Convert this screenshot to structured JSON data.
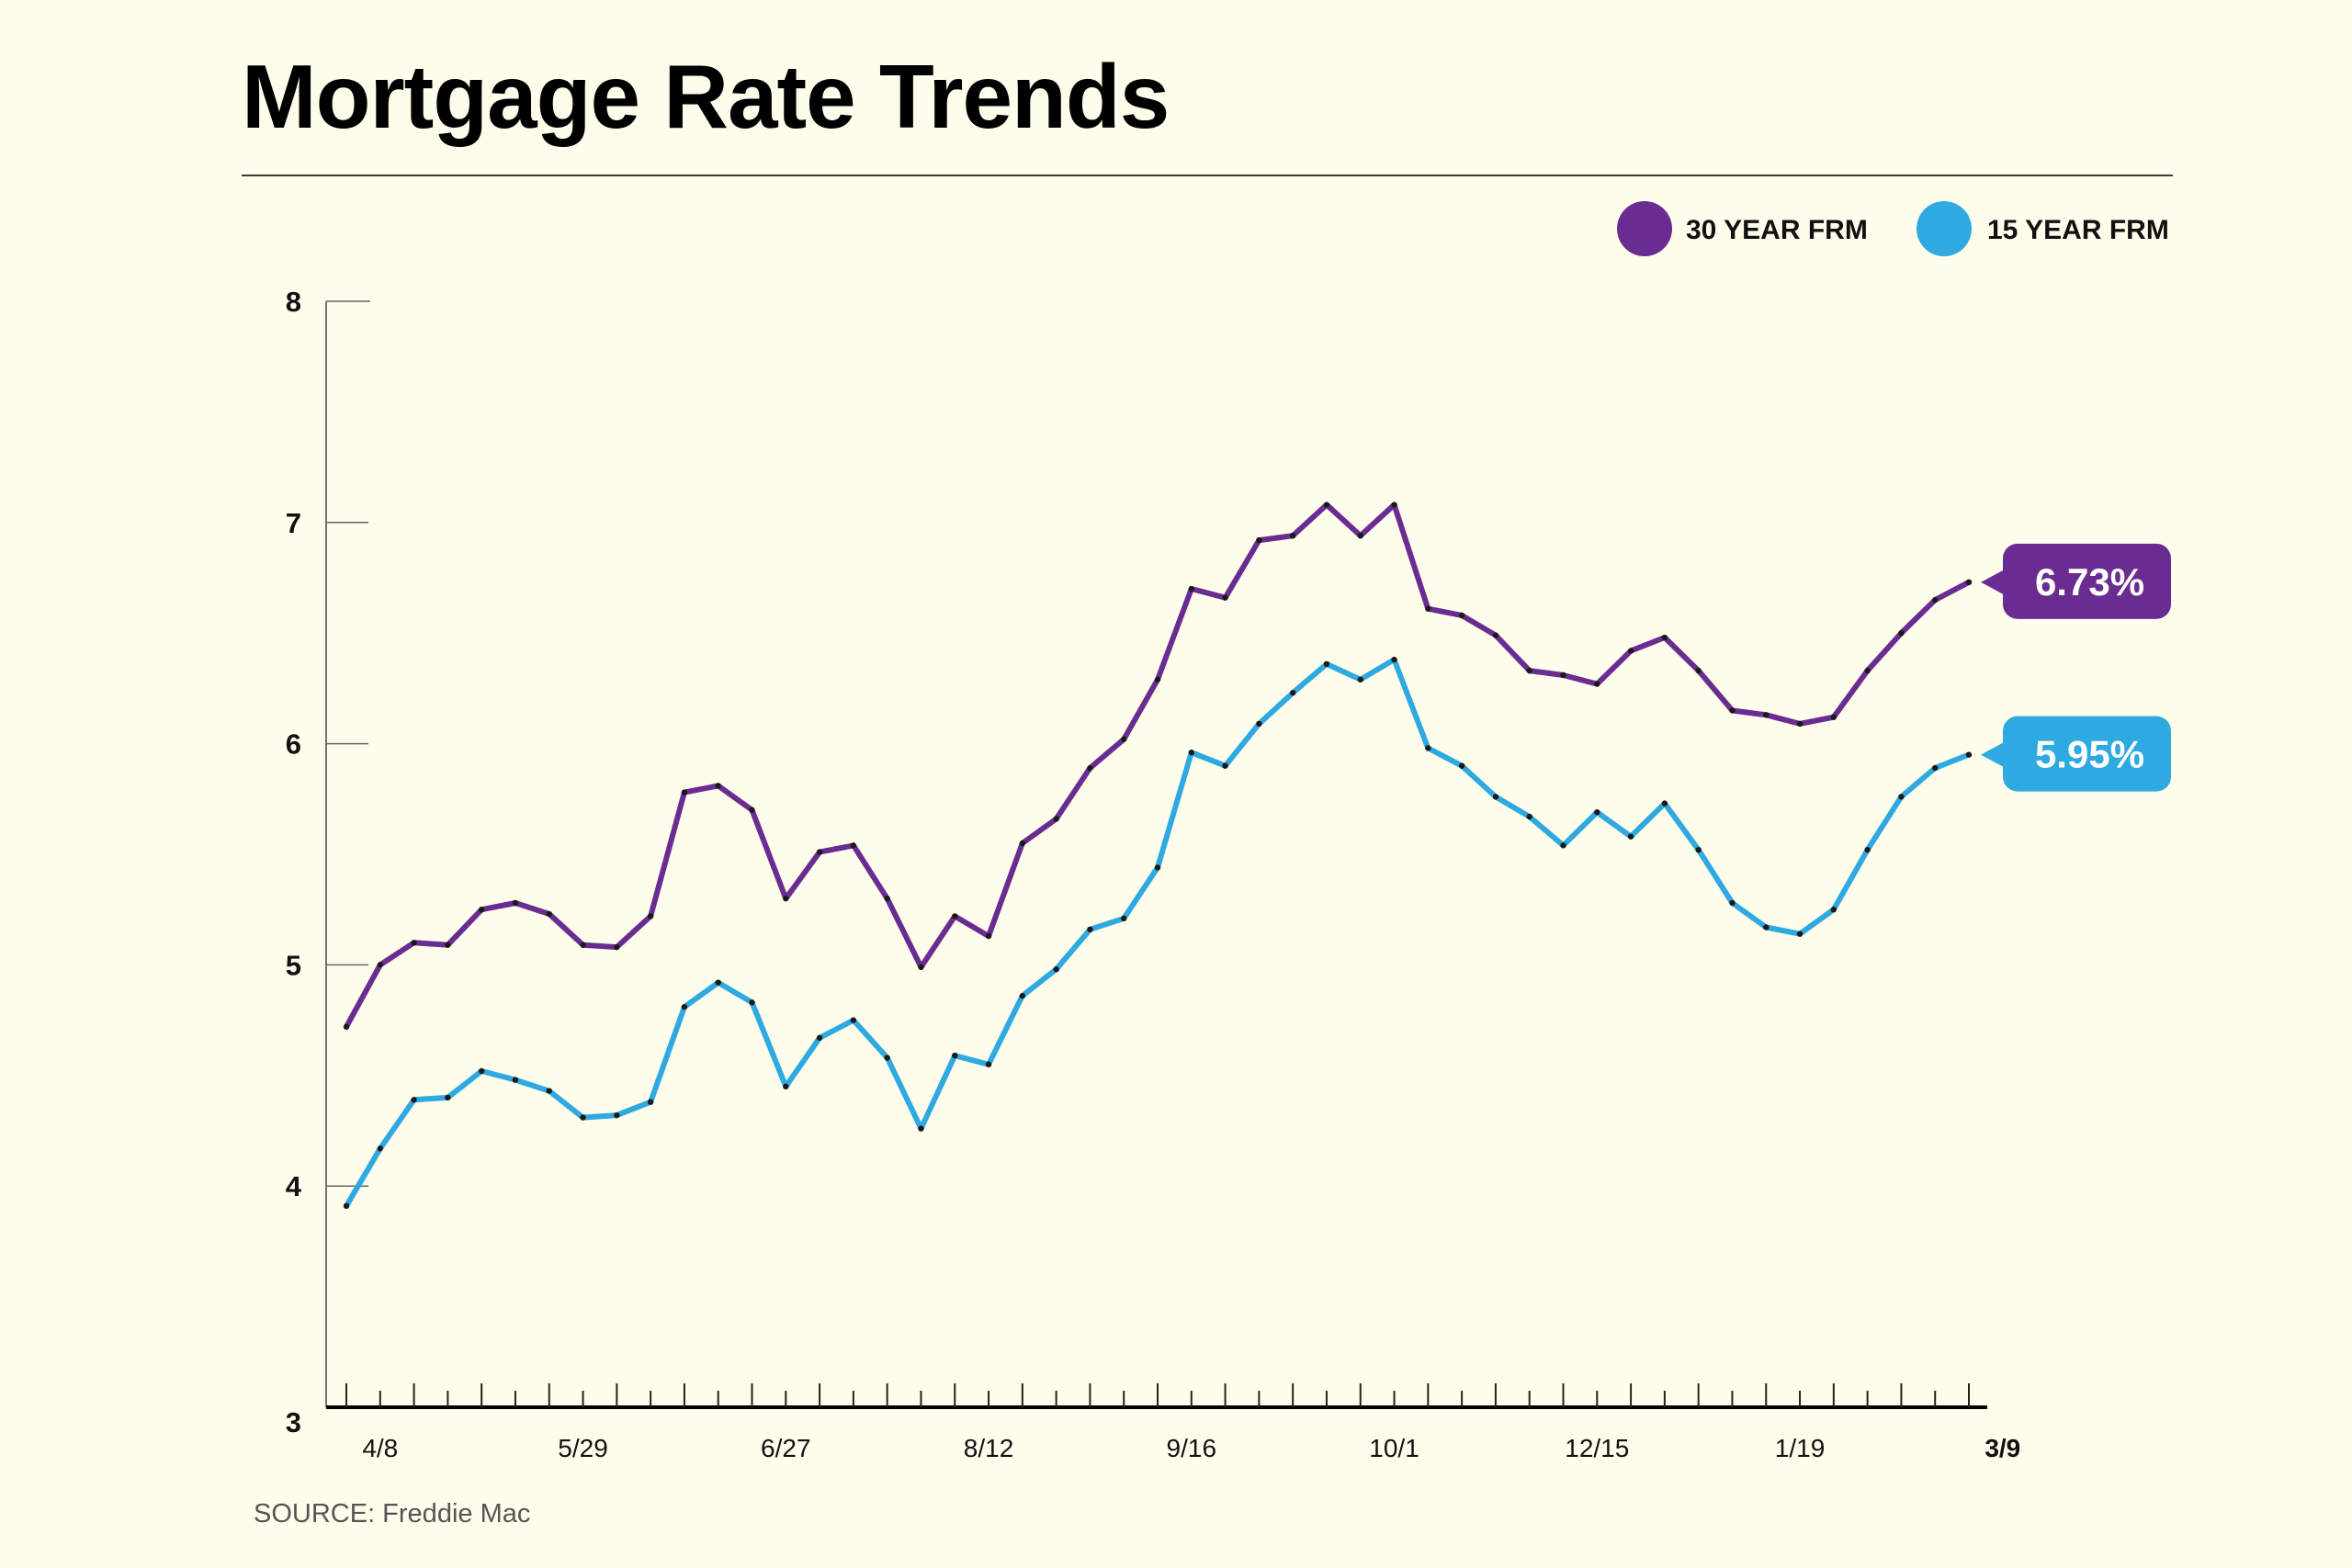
{
  "title": "Mortgage Rate Trends",
  "source": "SOURCE: Freddie Mac",
  "colors": {
    "series_30": "#6A2C91",
    "series_15": "#2EA9E1",
    "background": "#FEFDEB"
  },
  "chart_data": {
    "type": "line",
    "title": "Mortgage Rate Trends",
    "xlabel": "",
    "ylabel": "",
    "ylim": [
      3,
      8
    ],
    "yticks": [
      3,
      4,
      5,
      6,
      7,
      8
    ],
    "grid": false,
    "legend_position": "top-right",
    "xtick_labels": [
      {
        "label": "4/8",
        "index": 1,
        "bold": false
      },
      {
        "label": "5/29",
        "index": 7,
        "bold": false
      },
      {
        "label": "6/27",
        "index": 13,
        "bold": false
      },
      {
        "label": "8/12",
        "index": 19,
        "bold": false
      },
      {
        "label": "9/16",
        "index": 25,
        "bold": false
      },
      {
        "label": "10/1",
        "index": 31,
        "bold": false
      },
      {
        "label": "12/15",
        "index": 37,
        "bold": false
      },
      {
        "label": "1/19",
        "index": 43,
        "bold": false
      },
      {
        "label": "3/9",
        "index": 49,
        "bold": true
      }
    ],
    "series": [
      {
        "name": "30 YEAR FRM",
        "end_label": "6.73%",
        "values": [
          4.72,
          5.0,
          5.1,
          5.09,
          5.25,
          5.28,
          5.23,
          5.09,
          5.08,
          5.22,
          5.78,
          5.81,
          5.7,
          5.3,
          5.51,
          5.54,
          5.3,
          4.99,
          5.22,
          5.13,
          5.55,
          5.66,
          5.89,
          6.02,
          6.29,
          6.7,
          6.66,
          6.92,
          6.94,
          7.08,
          6.94,
          7.08,
          6.61,
          6.58,
          6.49,
          6.33,
          6.31,
          6.27,
          6.42,
          6.48,
          6.33,
          6.15,
          6.13,
          6.09,
          6.12,
          6.33,
          6.5,
          6.65,
          6.73
        ]
      },
      {
        "name": "15 YEAR FRM",
        "end_label": "5.95%",
        "values": [
          3.91,
          4.17,
          4.39,
          4.4,
          4.52,
          4.48,
          4.43,
          4.31,
          4.32,
          4.38,
          4.81,
          4.92,
          4.83,
          4.45,
          4.67,
          4.75,
          4.58,
          4.26,
          4.59,
          4.55,
          4.86,
          4.98,
          5.16,
          5.21,
          5.44,
          5.96,
          5.9,
          6.09,
          6.23,
          6.36,
          6.29,
          6.38,
          5.98,
          5.9,
          5.76,
          5.67,
          5.54,
          5.69,
          5.58,
          5.73,
          5.52,
          5.28,
          5.17,
          5.14,
          5.25,
          5.52,
          5.76,
          5.89,
          5.95
        ]
      }
    ]
  }
}
